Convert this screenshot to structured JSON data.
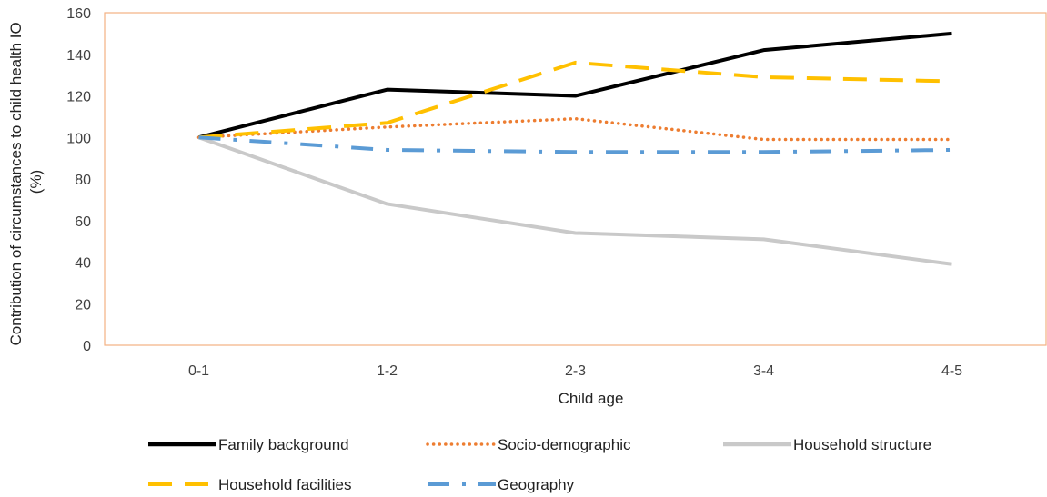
{
  "chart_data": {
    "type": "line",
    "title": "",
    "xlabel": "Child age",
    "ylabel_lines": [
      "Contribution of circumstances to child health IO",
      "(%)"
    ],
    "categories": [
      "0-1",
      "1-2",
      "2-3",
      "3-4",
      "4-5"
    ],
    "ylim": [
      0,
      160
    ],
    "yticks": [
      0,
      20,
      40,
      60,
      80,
      100,
      120,
      140,
      160
    ],
    "grid": false,
    "legend_position": "bottom",
    "series": [
      {
        "name": "Family background",
        "values": [
          100,
          123,
          120,
          142,
          150
        ],
        "color": "#000000",
        "style": "solid"
      },
      {
        "name": "Socio-demographic",
        "values": [
          100,
          105,
          109,
          99,
          99
        ],
        "color": "#ED7D31",
        "style": "dotted"
      },
      {
        "name": "Household structure",
        "values": [
          100,
          68,
          54,
          51,
          39
        ],
        "color": "#C9C9C9",
        "style": "solid"
      },
      {
        "name": "Household facilities",
        "values": [
          100,
          107,
          136,
          129,
          127
        ],
        "color": "#FFC000",
        "style": "dashed"
      },
      {
        "name": "Geography",
        "values": [
          100,
          94,
          93,
          93,
          94
        ],
        "color": "#5B9BD5",
        "style": "dashdot"
      }
    ],
    "plot_border_color": "#F4B183"
  }
}
